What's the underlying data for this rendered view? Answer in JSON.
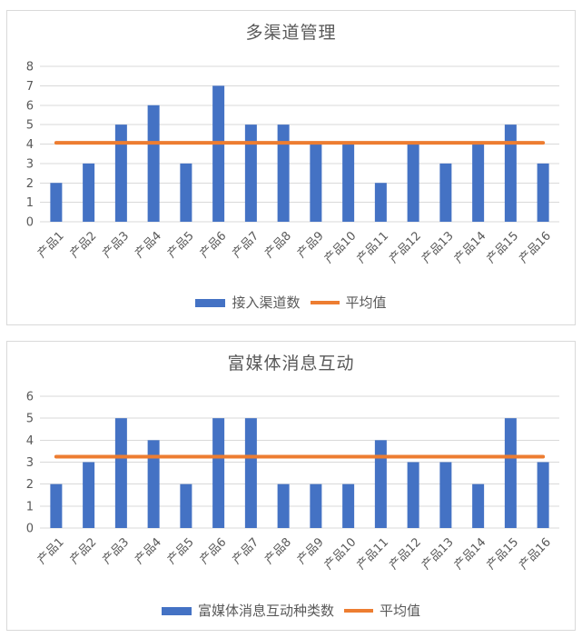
{
  "colors": {
    "bar": "#4472C4",
    "average_line": "#ED7D31",
    "grid": "#D9D9D9",
    "text": "#595959",
    "card_border": "#D9D9D9"
  },
  "chart_data": [
    {
      "type": "bar",
      "title": "多渠道管理",
      "categories": [
        "产品1",
        "产品2",
        "产品3",
        "产品4",
        "产品5",
        "产品6",
        "产品7",
        "产品8",
        "产品9",
        "产品10",
        "产品11",
        "产品12",
        "产品13",
        "产品14",
        "产品15",
        "产品16"
      ],
      "series": [
        {
          "name": "接入渠道数",
          "type": "bar",
          "color": "#4472C4",
          "values": [
            2,
            3,
            5,
            6,
            3,
            7,
            5,
            5,
            4,
            4,
            2,
            4,
            3,
            4,
            5,
            3
          ]
        },
        {
          "name": "平均值",
          "type": "line",
          "color": "#ED7D31",
          "value": 4.0625
        }
      ],
      "xlabel": "",
      "ylabel": "",
      "ylim": [
        0,
        8
      ],
      "ytick_step": 1,
      "yticks": [
        0,
        1,
        2,
        3,
        4,
        5,
        6,
        7,
        8
      ],
      "grid": true,
      "legend_position": "bottom",
      "xlabel_rotation_deg": -45
    },
    {
      "type": "bar",
      "title": "富媒体消息互动",
      "categories": [
        "产品1",
        "产品2",
        "产品3",
        "产品4",
        "产品5",
        "产品6",
        "产品7",
        "产品8",
        "产品9",
        "产品10",
        "产品11",
        "产品12",
        "产品13",
        "产品14",
        "产品15",
        "产品16"
      ],
      "series": [
        {
          "name": "富媒体消息互动种类数",
          "type": "bar",
          "color": "#4472C4",
          "values": [
            2,
            3,
            5,
            4,
            2,
            5,
            5,
            2,
            2,
            2,
            4,
            3,
            3,
            2,
            5,
            3
          ]
        },
        {
          "name": "平均值",
          "type": "line",
          "color": "#ED7D31",
          "value": 3.25
        }
      ],
      "xlabel": "",
      "ylabel": "",
      "ylim": [
        0,
        6
      ],
      "ytick_step": 1,
      "yticks": [
        0,
        1,
        2,
        3,
        4,
        5,
        6
      ],
      "grid": true,
      "legend_position": "bottom",
      "xlabel_rotation_deg": -45
    }
  ]
}
